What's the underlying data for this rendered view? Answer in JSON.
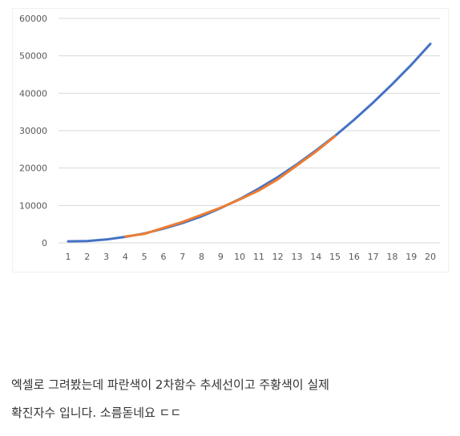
{
  "chart_data": {
    "type": "line",
    "x": [
      1,
      2,
      3,
      4,
      5,
      6,
      7,
      8,
      9,
      10,
      11,
      12,
      13,
      14,
      15,
      16,
      17,
      18,
      19,
      20
    ],
    "categories": [
      "1",
      "2",
      "3",
      "4",
      "5",
      "6",
      "7",
      "8",
      "9",
      "10",
      "11",
      "12",
      "13",
      "14",
      "15",
      "16",
      "17",
      "18",
      "19",
      "20"
    ],
    "y_ticks": [
      "0",
      "10000",
      "20000",
      "30000",
      "40000",
      "50000",
      "60000"
    ],
    "ylim": [
      0,
      60000
    ],
    "grid": "horizontal",
    "legend": "none",
    "title": "",
    "xlabel": "",
    "ylabel": "",
    "series": [
      {
        "color": "#4472C4",
        "x": [
          1,
          2,
          3,
          4,
          5,
          6,
          7,
          8,
          9,
          10,
          11,
          12,
          13,
          14,
          15,
          16,
          17,
          18,
          19,
          20
        ],
        "values": [
          400,
          500,
          900,
          1600,
          2500,
          3800,
          5300,
          7100,
          9300,
          11700,
          14500,
          17600,
          21000,
          24700,
          28600,
          32900,
          37500,
          42400,
          47600,
          53200
        ]
      },
      {
        "color": "#ED7D31",
        "x": [
          4,
          5,
          6,
          7,
          8,
          9,
          10,
          11,
          12,
          13,
          14,
          15
        ],
        "values": [
          1700,
          2400,
          4000,
          5600,
          7500,
          9400,
          11600,
          14000,
          17000,
          20700,
          24400,
          28500
        ]
      }
    ]
  },
  "caption": {
    "line1": "엑셀로 그려봤는데 파란색이 2차함수 추세선이고 주황색이 실제",
    "line2": "확진자수 입니다. 소름돋네요 ㄷㄷ"
  }
}
